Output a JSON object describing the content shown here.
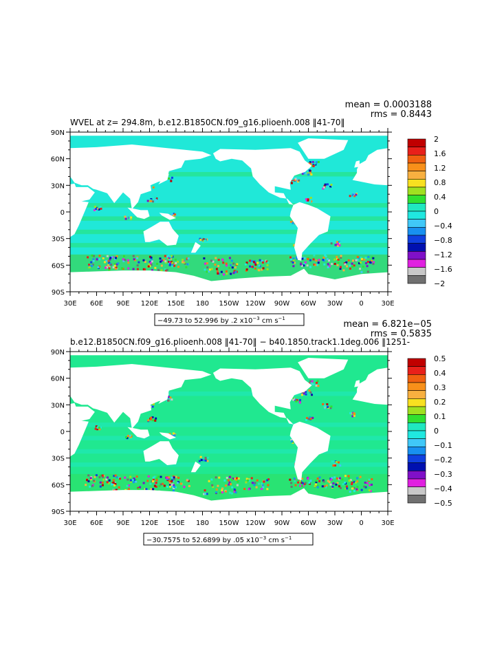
{
  "chart_data": [
    {
      "type": "heatmap",
      "title": "WVEL at z= 294.8m, b.e12.B1850CN.f09_g16.plioenh.008 ‖41-70‖",
      "stats": {
        "mean": "mean = 0.0003188",
        "rms": "rms = 0.8443"
      },
      "x_ticks": [
        "30E",
        "60E",
        "90E",
        "120E",
        "150E",
        "180",
        "150W",
        "120W",
        "90W",
        "60W",
        "30W",
        "0",
        "30E"
      ],
      "y_ticks": [
        "90N",
        "60N",
        "30N",
        "0",
        "30S",
        "60S",
        "90S"
      ],
      "range_label": "−49.73 to 52.996 by .2 x10",
      "range_exp": "−3",
      "range_units": " cm s",
      "range_units_exp": "−1",
      "colorbar": {
        "labels": [
          "2",
          "1.6",
          "1.2",
          "0.8",
          "0.4",
          "0",
          "−0.4",
          "−0.8",
          "−1.2",
          "−1.6",
          "−2"
        ],
        "colors": [
          "#c00000",
          "#e8201a",
          "#f06010",
          "#f8901a",
          "#f8b040",
          "#f8e020",
          "#a0e020",
          "#30e030",
          "#20e8c0",
          "#20e8e0",
          "#40c8f8",
          "#1890f0",
          "#1040e0",
          "#0010b0",
          "#8010c8",
          "#e020e0",
          "#c8c8c8",
          "#707070"
        ]
      },
      "ocean_color": "#20e8d8"
    },
    {
      "type": "heatmap",
      "title": "b.e12.B1850CN.f09_g16.plioenh.008 ‖41-70‖ − b40.1850.track1.1deg.006 ‖1251-",
      "stats": {
        "mean": "mean = 6.821e−05",
        "rms": "rms = 0.5835"
      },
      "x_ticks": [
        "30E",
        "60E",
        "90E",
        "120E",
        "150E",
        "180",
        "150W",
        "120W",
        "90W",
        "60W",
        "30W",
        "0",
        "30E"
      ],
      "y_ticks": [
        "90N",
        "60N",
        "30N",
        "0",
        "30S",
        "60S",
        "90S"
      ],
      "range_label": "−30.7575 to 52.6899 by .05 x10",
      "range_exp": "−3",
      "range_units": " cm s",
      "range_units_exp": "−1",
      "colorbar": {
        "labels": [
          "0.5",
          "0.4",
          "0.3",
          "0.2",
          "0.1",
          "0",
          "−0.1",
          "−0.2",
          "−0.3",
          "−0.4",
          "−0.5"
        ],
        "colors": [
          "#c00000",
          "#e8201a",
          "#f06010",
          "#f8901a",
          "#f8b040",
          "#f8e020",
          "#a0e020",
          "#30e030",
          "#20e8c0",
          "#20e8e0",
          "#40c8f8",
          "#1890f0",
          "#1040e0",
          "#0010b0",
          "#8010c8",
          "#e020e0",
          "#c8c8c8",
          "#707070"
        ]
      },
      "ocean_color": "#20e890"
    }
  ]
}
